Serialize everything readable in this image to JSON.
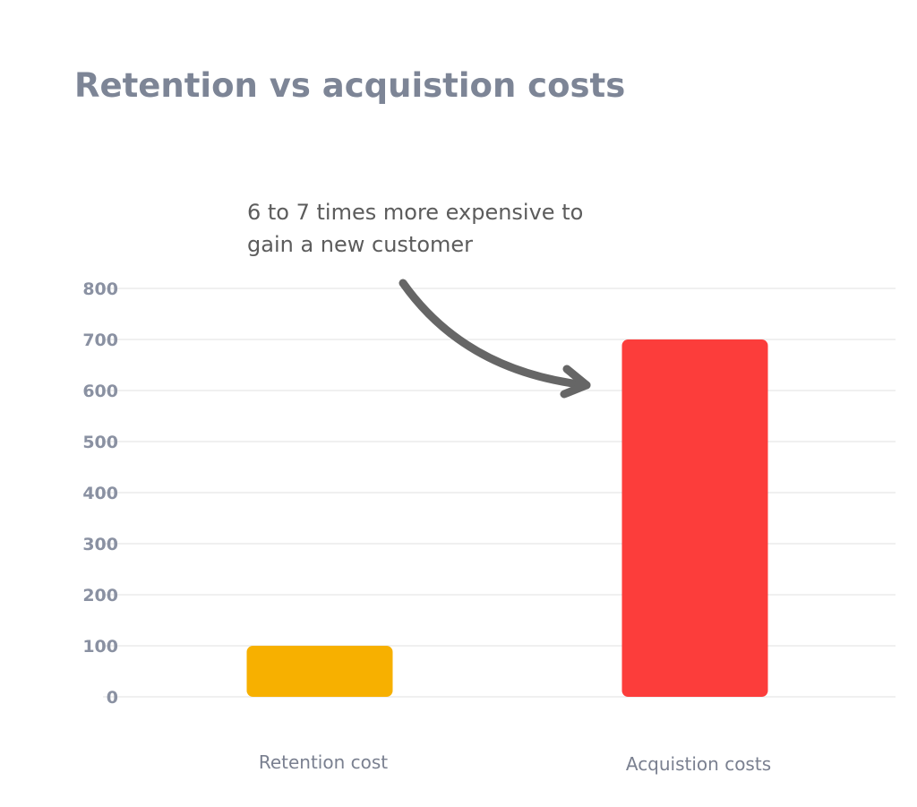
{
  "chart_data": {
    "type": "bar",
    "title": "Retention vs acquistion costs",
    "annotation_lines": [
      "6 to 7 times more expensive to",
      "gain a new customer"
    ],
    "categories": [
      "Retention cost",
      "Acquistion costs"
    ],
    "values": [
      100,
      700
    ],
    "bar_colors": [
      "#f7b000",
      "#fc3d3b"
    ],
    "ylim": [
      0,
      800
    ],
    "yticks": [
      0,
      100,
      200,
      300,
      400,
      500,
      600,
      700,
      800
    ],
    "grid": true,
    "xlabel": "",
    "ylabel": ""
  },
  "colors": {
    "title": "#7d8596",
    "annotation": "#5c5c5c",
    "arrow": "#666666",
    "grid": "#ececec",
    "tick_labels": "#8a91a2"
  }
}
